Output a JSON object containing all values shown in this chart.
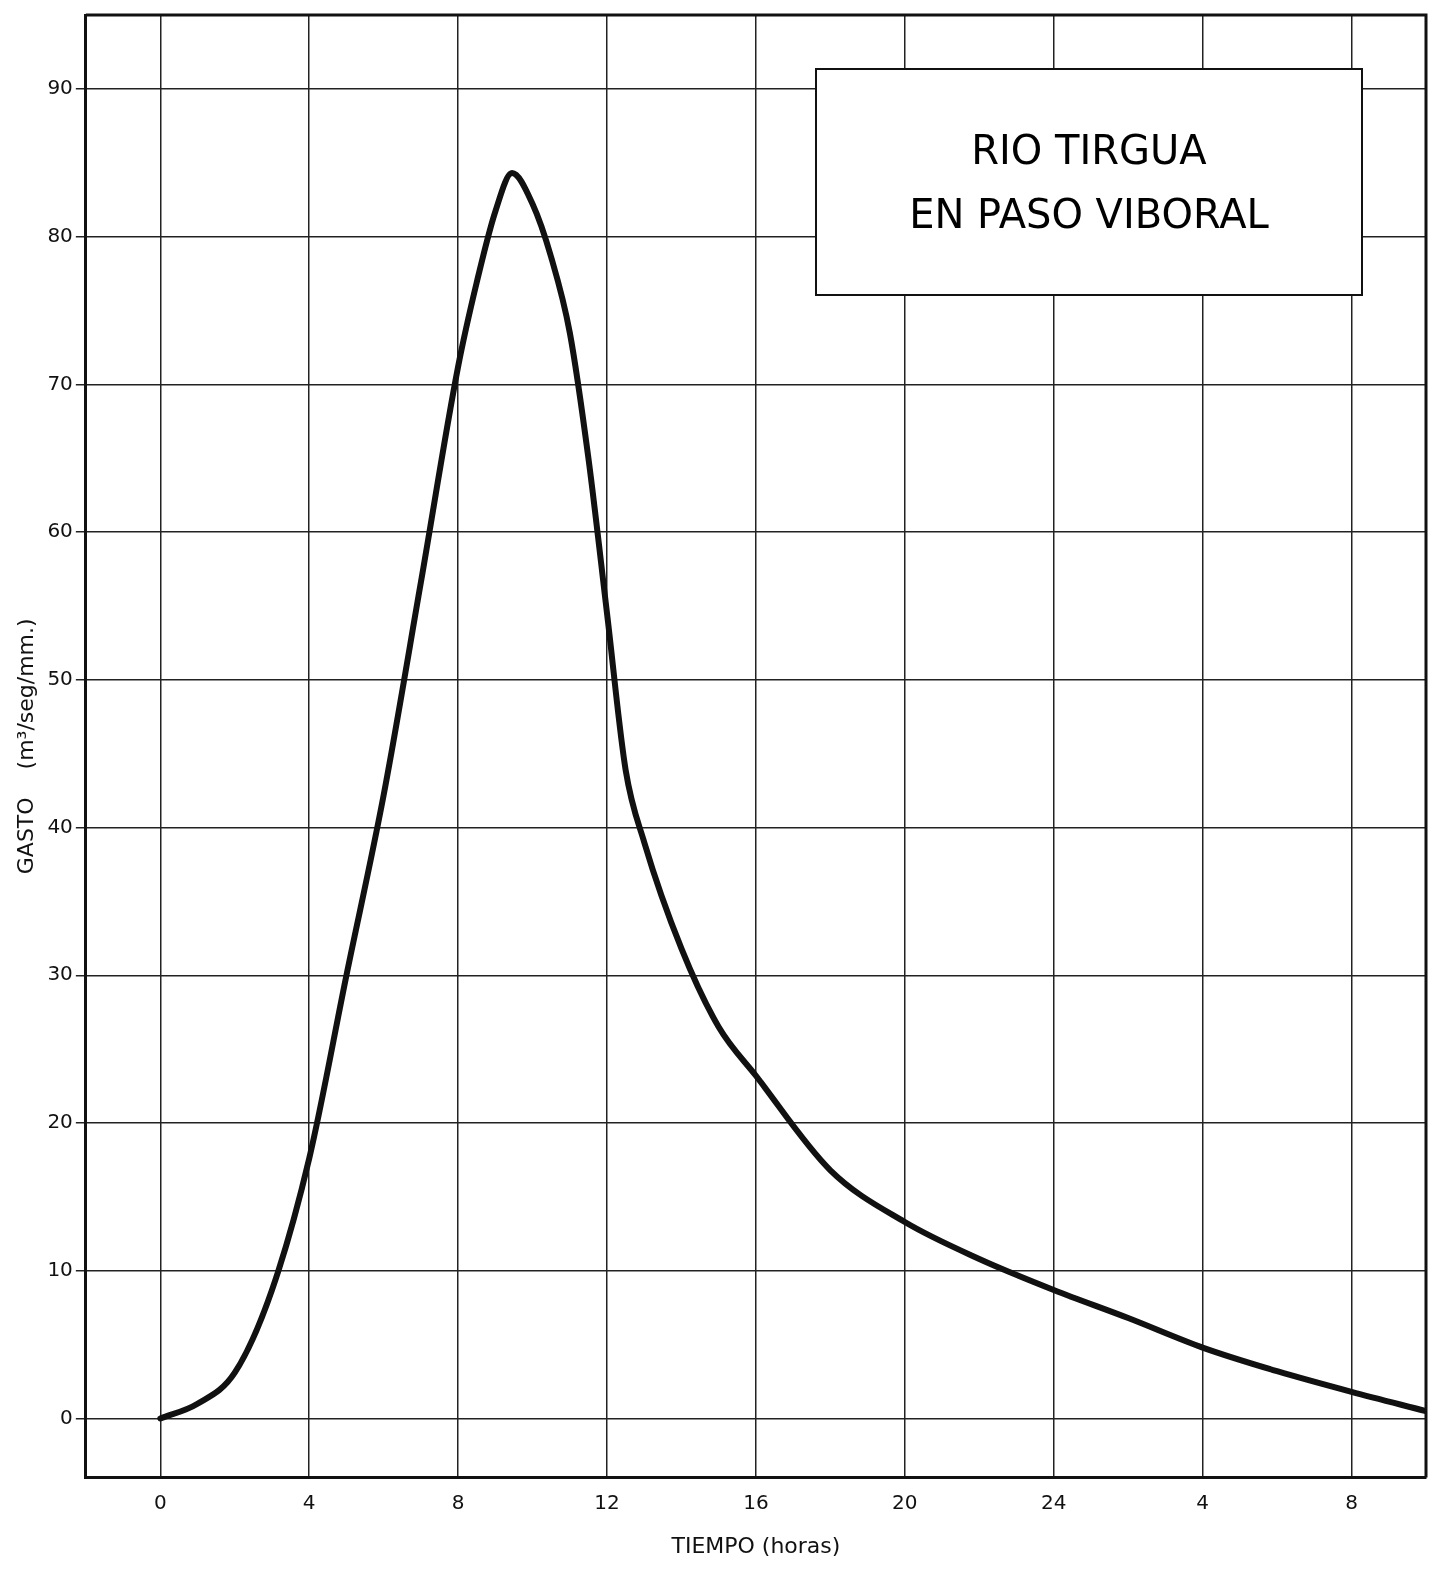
{
  "chart_data": {
    "type": "line",
    "title": "RIO TIRGUA\nEN PASO VIBORAL",
    "xlabel": "TIEMPO (horas)",
    "ylabel": "GASTO    (m³/seg/mm.)",
    "x": [
      "--01-02T00:00",
      "--01-02T01:00",
      "--01-02T02:00",
      "--01-02T03:00",
      "--01-02T04:00",
      "--01-02T05:00",
      "--01-02T06:00",
      "--01-02T07:00",
      "--01-02T08:00",
      "--01-02T08:30",
      "--01-02T09:00",
      "--01-02T09:27",
      "--01-02T10:00",
      "--01-02T10:30",
      "--01-02T11:00",
      "--01-02T11:30",
      "--01-02T12:00",
      "--01-02T12:30",
      "--01-02T13:00",
      "--01-02T14:00",
      "--01-02T15:00",
      "--01-02T16:00",
      "--01-02T18:00",
      "--01-02T20:00",
      "--01-02T22:00",
      "--01-03T00:00",
      "--01-03T02:00",
      "--01-03T04:00",
      "--01-03T06:00",
      "--01-03T08:00",
      "--01-03T10:00"
    ],
    "series": [
      {
        "color": "#111111",
        "values": [
          0,
          1,
          3.1,
          8.7,
          17.6,
          30,
          42.2,
          56.6,
          71.2,
          76.9,
          81.7,
          84.3,
          82.2,
          78.6,
          73.5,
          65,
          54.5,
          43.9,
          39,
          31.8,
          26.5,
          23.2,
          16.8,
          13.3,
          10.8,
          8.7,
          6.8,
          4.8,
          3.2,
          1.8,
          0.5
        ]
      }
    ],
    "xlim": [
      "--01-01T22:00",
      "--01-03T10:00"
    ],
    "xticks": [
      {
        "value": "--01-02T00:00",
        "label": "0"
      },
      {
        "value": "--01-02T04:00",
        "label": "4"
      },
      {
        "value": "--01-02T08:00",
        "label": "8"
      },
      {
        "value": "--01-02T12:00",
        "label": "12"
      },
      {
        "value": "--01-02T16:00",
        "label": "16"
      },
      {
        "value": "--01-02T20:00",
        "label": "20"
      },
      {
        "value": "--01-03T00:00",
        "label": "24"
      },
      {
        "value": "--01-03T04:00",
        "label": "4"
      },
      {
        "value": "--01-03T08:00",
        "label": "8"
      }
    ],
    "ylim": [
      -4,
      95
    ],
    "yticks": [
      0,
      10,
      20,
      30,
      40,
      50,
      60,
      70,
      80,
      90
    ],
    "grid": true,
    "legend": false,
    "marker": "none",
    "line_style": "solid"
  }
}
